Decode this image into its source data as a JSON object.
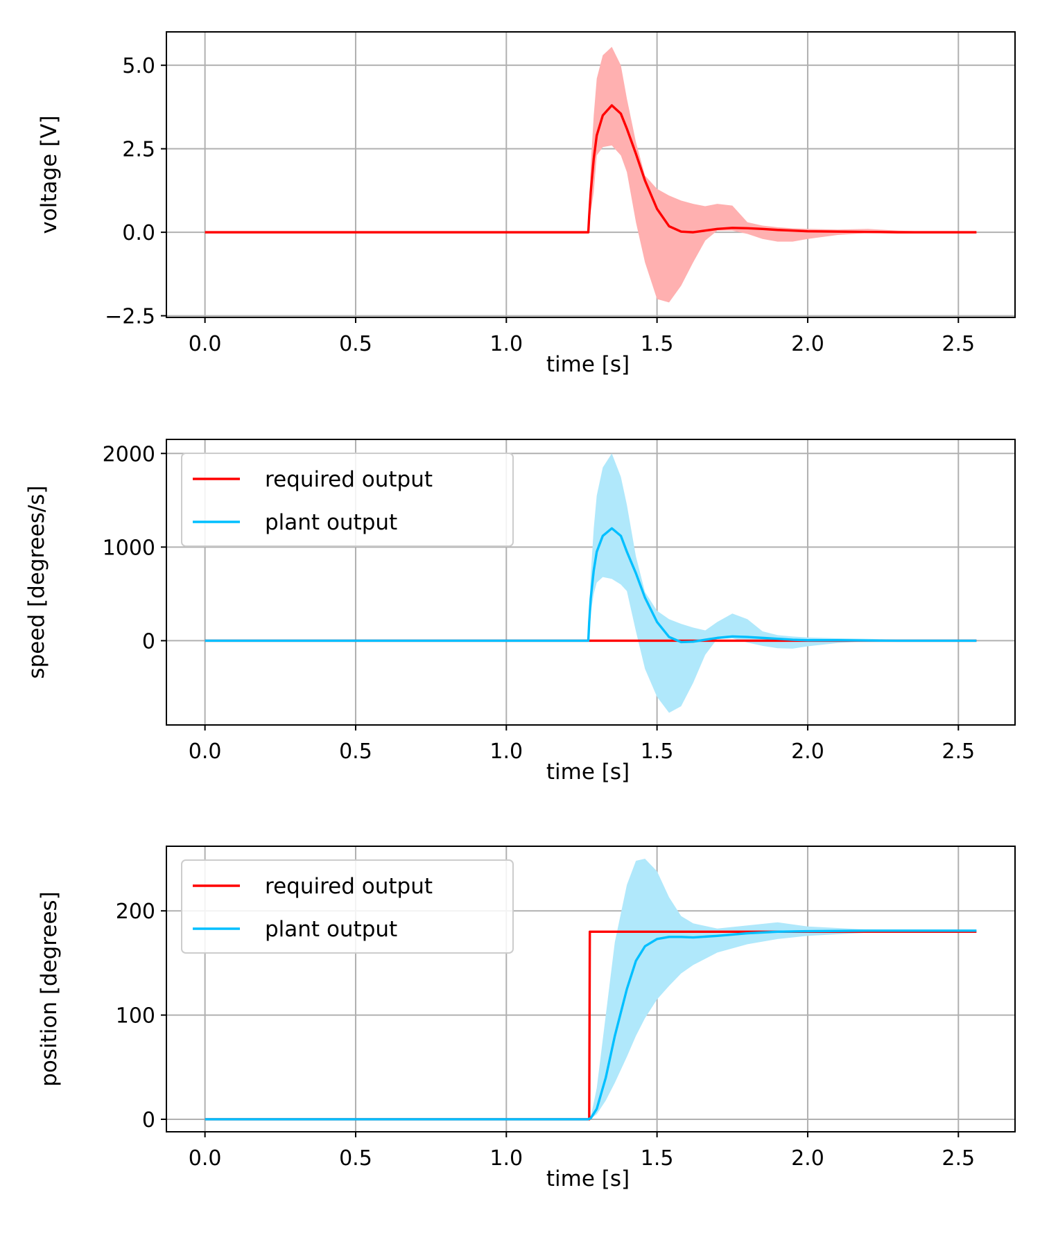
{
  "chart_data": [
    {
      "type": "line",
      "xlabel": "time [s]",
      "ylabel": "voltage [V]",
      "xlim": [
        -0.128,
        2.688
      ],
      "ylim": [
        -2.55,
        6.0
      ],
      "xticks": [
        0.0,
        0.5,
        1.0,
        1.5,
        2.0,
        2.5
      ],
      "xtick_labels": [
        "0.0",
        "0.5",
        "1.0",
        "1.5",
        "2.0",
        "2.5"
      ],
      "yticks": [
        -2.5,
        0.0,
        2.5,
        5.0
      ],
      "ytick_labels": [
        "−2.5",
        "0.0",
        "2.5",
        "5.0"
      ],
      "grid": true,
      "legend": null,
      "series": [
        {
          "name": "",
          "color": "#ff0000",
          "x": [
            0,
            1.27,
            1.272,
            1.275,
            1.28,
            1.29,
            1.3,
            1.32,
            1.35,
            1.38,
            1.4,
            1.43,
            1.46,
            1.5,
            1.54,
            1.58,
            1.62,
            1.66,
            1.7,
            1.75,
            1.8,
            1.85,
            1.9,
            1.95,
            2.0,
            2.1,
            2.2,
            2.3,
            2.4,
            2.56
          ],
          "y": [
            0,
            0,
            0,
            0.5,
            1.2,
            2.2,
            2.9,
            3.5,
            3.8,
            3.55,
            3.1,
            2.35,
            1.55,
            0.7,
            0.18,
            0.02,
            0.0,
            0.05,
            0.1,
            0.13,
            0.12,
            0.1,
            0.07,
            0.05,
            0.03,
            0.02,
            0.01,
            0.0,
            0.0,
            0.0
          ],
          "band": {
            "color": "#ffb0b0",
            "upper": [
              0,
              0,
              0,
              0.8,
              2.0,
              3.5,
              4.6,
              5.3,
              5.55,
              5.0,
              4.0,
              2.7,
              1.7,
              1.3,
              1.1,
              0.95,
              0.85,
              0.78,
              0.85,
              0.8,
              0.3,
              0.2,
              0.15,
              0.12,
              0.1,
              0.08,
              0.1,
              0.05,
              0.02,
              0.0
            ],
            "lower": [
              0,
              0,
              0,
              0.2,
              0.6,
              1.2,
              2.3,
              2.55,
              2.6,
              2.3,
              1.8,
              0.3,
              -0.9,
              -2.0,
              -2.1,
              -1.6,
              -0.9,
              -0.25,
              0.05,
              0.05,
              -0.05,
              -0.2,
              -0.28,
              -0.28,
              -0.2,
              -0.08,
              -0.02,
              0.0,
              0.0,
              0.0
            ]
          }
        }
      ]
    },
    {
      "type": "line",
      "xlabel": "time [s]",
      "ylabel": "speed [degrees/s]",
      "xlim": [
        -0.128,
        2.688
      ],
      "ylim": [
        -900,
        2150
      ],
      "xticks": [
        0.0,
        0.5,
        1.0,
        1.5,
        2.0,
        2.5
      ],
      "xtick_labels": [
        "0.0",
        "0.5",
        "1.0",
        "1.5",
        "2.0",
        "2.5"
      ],
      "yticks": [
        0,
        1000,
        2000
      ],
      "ytick_labels": [
        "0",
        "1000",
        "2000"
      ],
      "grid": true,
      "legend": {
        "placement": "upper-left",
        "entries": [
          {
            "label": "required output",
            "color": "#ff0000"
          },
          {
            "label": "plant output",
            "color": "#00bfff"
          }
        ]
      },
      "series": [
        {
          "name": "required output",
          "color": "#ff0000",
          "x": [
            0,
            2.56
          ],
          "y": [
            0,
            0
          ]
        },
        {
          "name": "plant output",
          "color": "#00bfff",
          "x": [
            0,
            1.27,
            1.272,
            1.275,
            1.28,
            1.29,
            1.3,
            1.32,
            1.35,
            1.38,
            1.4,
            1.43,
            1.46,
            1.5,
            1.54,
            1.58,
            1.62,
            1.66,
            1.7,
            1.75,
            1.8,
            1.85,
            1.9,
            1.95,
            2.0,
            2.1,
            2.2,
            2.3,
            2.4,
            2.56
          ],
          "y": [
            0,
            0,
            0,
            200,
            450,
            750,
            950,
            1120,
            1200,
            1120,
            950,
            720,
            460,
            200,
            40,
            -15,
            -10,
            10,
            30,
            45,
            40,
            30,
            20,
            10,
            5,
            5,
            2,
            0,
            0,
            0
          ],
          "band": {
            "color": "#b0e8fb",
            "upper": [
              0,
              0,
              0,
              300,
              700,
              1200,
              1550,
              1850,
              2000,
              1750,
              1450,
              900,
              520,
              320,
              230,
              180,
              140,
              110,
              200,
              290,
              230,
              100,
              60,
              45,
              35,
              25,
              20,
              10,
              5,
              0
            ],
            "lower": [
              0,
              0,
              0,
              100,
              300,
              500,
              620,
              680,
              660,
              600,
              530,
              100,
              -300,
              -600,
              -770,
              -700,
              -450,
              -150,
              20,
              25,
              -20,
              -55,
              -80,
              -85,
              -60,
              -25,
              -5,
              0,
              0,
              0
            ]
          }
        }
      ]
    },
    {
      "type": "line",
      "xlabel": "time [s]",
      "ylabel": "position [degrees]",
      "xlim": [
        -0.128,
        2.688
      ],
      "ylim": [
        -12,
        262
      ],
      "xticks": [
        0.0,
        0.5,
        1.0,
        1.5,
        2.0,
        2.5
      ],
      "xtick_labels": [
        "0.0",
        "0.5",
        "1.0",
        "1.5",
        "2.0",
        "2.5"
      ],
      "yticks": [
        0,
        100,
        200
      ],
      "ytick_labels": [
        "0",
        "100",
        "200"
      ],
      "grid": true,
      "legend": {
        "placement": "upper-left",
        "entries": [
          {
            "label": "required output",
            "color": "#ff0000"
          },
          {
            "label": "plant output",
            "color": "#00bfff"
          }
        ]
      },
      "series": [
        {
          "name": "required output",
          "color": "#ff0000",
          "x": [
            0,
            1.275,
            1.277,
            2.56
          ],
          "y": [
            0,
            0,
            180,
            180
          ]
        },
        {
          "name": "plant output",
          "color": "#00bfff",
          "x": [
            0,
            1.27,
            1.28,
            1.3,
            1.33,
            1.36,
            1.4,
            1.43,
            1.46,
            1.5,
            1.54,
            1.58,
            1.62,
            1.7,
            1.8,
            1.9,
            2.0,
            2.2,
            2.4,
            2.56
          ],
          "y": [
            0,
            0,
            1,
            10,
            40,
            80,
            125,
            152,
            166,
            173,
            175,
            175,
            174.5,
            176,
            178.5,
            180,
            180.5,
            181,
            181,
            181
          ],
          "band": {
            "color": "#b0e8fb",
            "upper": [
              0,
              0,
              2,
              30,
              100,
              170,
              225,
              248,
              250,
              238,
              213,
              195,
              188,
              183,
              186,
              189,
              185,
              182,
              181,
              181
            ],
            "lower": [
              0,
              0,
              0.5,
              5,
              18,
              35,
              60,
              80,
              97,
              115,
              128,
              140,
              148,
              160,
              168,
              173,
              176,
              179,
              180,
              180
            ]
          }
        }
      ]
    }
  ]
}
